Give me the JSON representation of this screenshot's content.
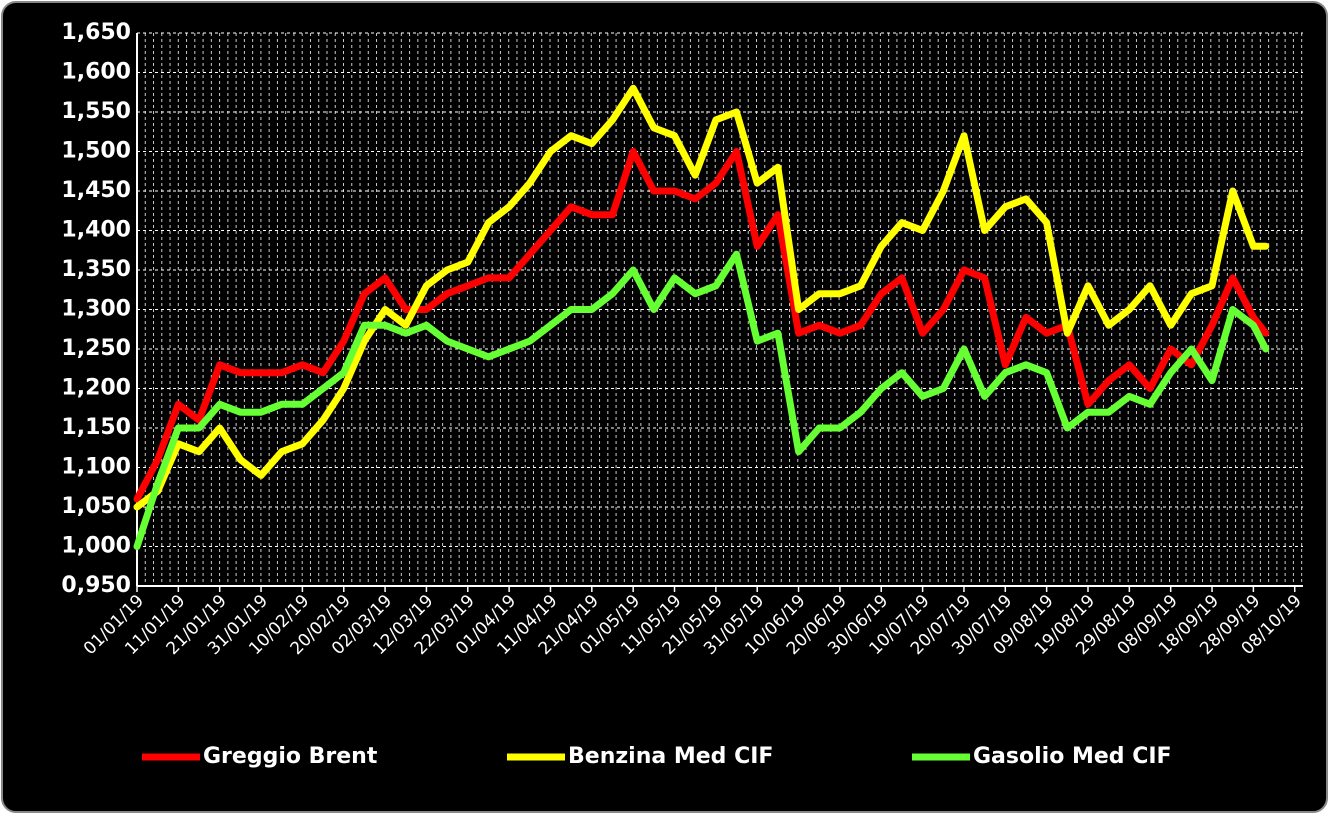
{
  "chart_data": {
    "type": "line",
    "xlim": [
      "01/01/19",
      "10/10/19"
    ],
    "xticks": [
      "01/01/19",
      "11/01/19",
      "21/01/19",
      "31/01/19",
      "10/02/19",
      "20/02/19",
      "02/03/19",
      "12/03/19",
      "22/03/19",
      "01/04/19",
      "11/04/19",
      "21/04/19",
      "01/05/19",
      "11/05/19",
      "21/05/19",
      "31/05/19",
      "10/06/19",
      "20/06/19",
      "30/06/19",
      "10/07/19",
      "20/07/19",
      "30/07/19",
      "09/08/19",
      "19/08/19",
      "29/08/19",
      "08/09/19",
      "18/09/19",
      "28/09/19",
      "08/10/19"
    ],
    "ylim": [
      0.95,
      1.65
    ],
    "yticks": [
      {
        "value": 0.95,
        "label": "0,950"
      },
      {
        "value": 1.0,
        "label": "1,000"
      },
      {
        "value": 1.05,
        "label": "1,050"
      },
      {
        "value": 1.1,
        "label": "1,100"
      },
      {
        "value": 1.15,
        "label": "1,150"
      },
      {
        "value": 1.2,
        "label": "1,200"
      },
      {
        "value": 1.25,
        "label": "1,250"
      },
      {
        "value": 1.3,
        "label": "1,300"
      },
      {
        "value": 1.35,
        "label": "1,350"
      },
      {
        "value": 1.4,
        "label": "1,400"
      },
      {
        "value": 1.45,
        "label": "1,450"
      },
      {
        "value": 1.5,
        "label": "1,500"
      },
      {
        "value": 1.55,
        "label": "1,550"
      },
      {
        "value": 1.6,
        "label": "1,600"
      },
      {
        "value": 1.65,
        "label": "1,650"
      }
    ],
    "grid": true,
    "legend": "bottom",
    "x": [
      "01/01/19",
      "06/01/19",
      "11/01/19",
      "16/01/19",
      "21/01/19",
      "26/01/19",
      "31/01/19",
      "05/02/19",
      "10/02/19",
      "15/02/19",
      "20/02/19",
      "25/02/19",
      "02/03/19",
      "07/03/19",
      "12/03/19",
      "17/03/19",
      "22/03/19",
      "27/03/19",
      "01/04/19",
      "06/04/19",
      "11/04/19",
      "16/04/19",
      "21/04/19",
      "26/04/19",
      "01/05/19",
      "06/05/19",
      "11/05/19",
      "16/05/19",
      "21/05/19",
      "26/05/19",
      "31/05/19",
      "05/06/19",
      "10/06/19",
      "15/06/19",
      "20/06/19",
      "25/06/19",
      "30/06/19",
      "05/07/19",
      "10/07/19",
      "15/07/19",
      "20/07/19",
      "25/07/19",
      "30/07/19",
      "04/08/19",
      "09/08/19",
      "14/08/19",
      "19/08/19",
      "24/08/19",
      "29/08/19",
      "03/09/19",
      "08/09/19",
      "13/09/19",
      "18/09/19",
      "23/09/19",
      "28/09/19",
      "01/10/19"
    ],
    "series": [
      {
        "name": "Greggio Brent",
        "color": "#ff0000",
        "values": [
          1.06,
          1.11,
          1.18,
          1.16,
          1.23,
          1.22,
          1.22,
          1.22,
          1.23,
          1.22,
          1.26,
          1.32,
          1.34,
          1.3,
          1.3,
          1.32,
          1.33,
          1.34,
          1.34,
          1.37,
          1.4,
          1.43,
          1.42,
          1.42,
          1.5,
          1.45,
          1.45,
          1.44,
          1.46,
          1.5,
          1.38,
          1.42,
          1.27,
          1.28,
          1.27,
          1.28,
          1.32,
          1.34,
          1.27,
          1.3,
          1.35,
          1.34,
          1.23,
          1.29,
          1.27,
          1.28,
          1.18,
          1.21,
          1.23,
          1.2,
          1.25,
          1.23,
          1.28,
          1.34,
          1.29,
          1.27
        ]
      },
      {
        "name": "Benzina Med CIF",
        "color": "#ffff00",
        "values": [
          1.05,
          1.07,
          1.13,
          1.12,
          1.15,
          1.11,
          1.09,
          1.12,
          1.13,
          1.16,
          1.2,
          1.26,
          1.3,
          1.28,
          1.33,
          1.35,
          1.36,
          1.41,
          1.43,
          1.46,
          1.5,
          1.52,
          1.51,
          1.54,
          1.58,
          1.53,
          1.52,
          1.47,
          1.54,
          1.55,
          1.46,
          1.48,
          1.3,
          1.32,
          1.32,
          1.33,
          1.38,
          1.41,
          1.4,
          1.45,
          1.52,
          1.4,
          1.43,
          1.44,
          1.41,
          1.27,
          1.33,
          1.28,
          1.3,
          1.33,
          1.28,
          1.32,
          1.33,
          1.45,
          1.38,
          1.38
        ]
      },
      {
        "name": "Gasolio Med CIF",
        "color": "#66ff33",
        "values": [
          1.0,
          1.08,
          1.15,
          1.15,
          1.18,
          1.17,
          1.17,
          1.18,
          1.18,
          1.2,
          1.22,
          1.28,
          1.28,
          1.27,
          1.28,
          1.26,
          1.25,
          1.24,
          1.25,
          1.26,
          1.28,
          1.3,
          1.3,
          1.32,
          1.35,
          1.3,
          1.34,
          1.32,
          1.33,
          1.37,
          1.26,
          1.27,
          1.12,
          1.15,
          1.15,
          1.17,
          1.2,
          1.22,
          1.19,
          1.2,
          1.25,
          1.19,
          1.22,
          1.23,
          1.22,
          1.15,
          1.17,
          1.17,
          1.19,
          1.18,
          1.22,
          1.25,
          1.21,
          1.3,
          1.28,
          1.25
        ]
      }
    ]
  }
}
